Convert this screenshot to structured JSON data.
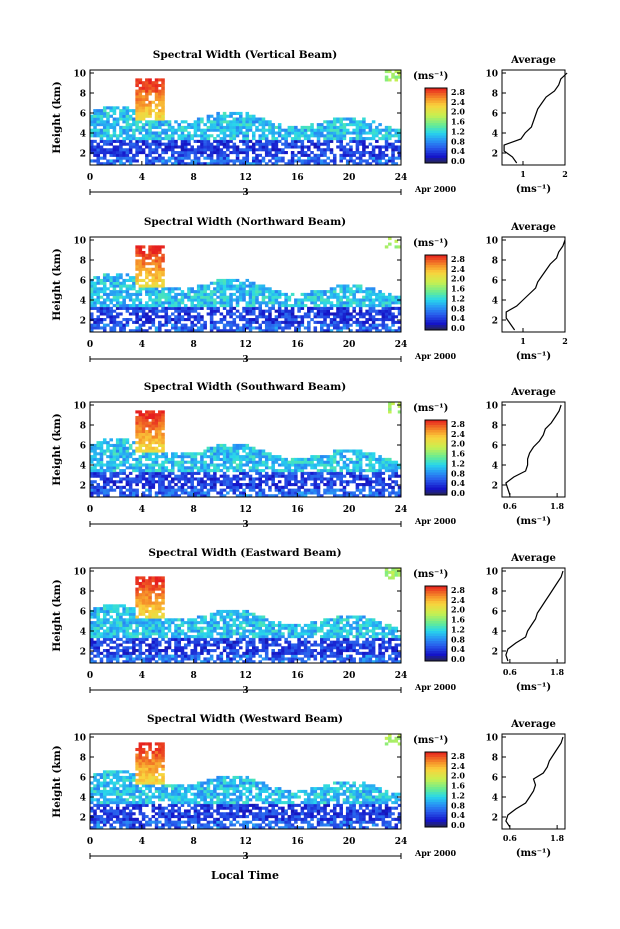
{
  "figure": {
    "x_axis_label": "Local Time",
    "date_label": "Apr 2000",
    "day_label": "3",
    "colorbar_unit": "(ms⁻¹)",
    "colorbar_ticks": [
      "2.8",
      "2.4",
      "2.0",
      "1.6",
      "1.2",
      "0.8",
      "0.4",
      "0.0"
    ],
    "average_title": "Average",
    "average_xlabel": "(ms⁻¹)"
  },
  "chart_data": [
    {
      "type": "heatmap",
      "title": "Spectral Width (Vertical Beam)",
      "ylabel": "Height (km)",
      "xlabel": "",
      "x_ticks": [
        0,
        4,
        8,
        12,
        16,
        20,
        24
      ],
      "y_ticks": [
        2,
        4,
        6,
        8,
        10
      ],
      "xlim": [
        0,
        24
      ],
      "ylim": [
        0.8,
        10.3
      ],
      "color_scale": {
        "min": 0.0,
        "max": 3.0,
        "unit": "ms^-1"
      },
      "average_profile": {
        "x_ticks": [
          1,
          2
        ],
        "xlim": [
          0.5,
          2.0
        ],
        "heights": [
          1.0,
          1.6,
          2.2,
          2.8,
          3.4,
          4.0,
          4.6,
          5.2,
          5.8,
          6.4,
          7.0,
          7.6,
          8.2,
          8.8,
          9.4,
          10.0
        ],
        "values": [
          0.85,
          0.75,
          0.55,
          0.55,
          0.95,
          1.05,
          1.2,
          1.25,
          1.3,
          1.35,
          1.45,
          1.55,
          1.75,
          1.85,
          1.9,
          2.05
        ]
      }
    },
    {
      "type": "heatmap",
      "title": "Spectral Width (Northward Beam)",
      "ylabel": "Height (km)",
      "xlabel": "",
      "x_ticks": [
        0,
        4,
        8,
        12,
        16,
        20,
        24
      ],
      "y_ticks": [
        2,
        4,
        6,
        8,
        10
      ],
      "xlim": [
        0,
        24
      ],
      "ylim": [
        0.8,
        10.3
      ],
      "color_scale": {
        "min": 0.0,
        "max": 3.0,
        "unit": "ms^-1"
      },
      "average_profile": {
        "x_ticks": [
          1,
          2
        ],
        "xlim": [
          0.5,
          2.0
        ],
        "heights": [
          1.0,
          1.6,
          2.2,
          2.8,
          3.4,
          4.0,
          4.6,
          5.2,
          5.8,
          6.4,
          7.0,
          7.6,
          8.2,
          8.8,
          9.4,
          10.0
        ],
        "values": [
          0.8,
          0.7,
          0.6,
          0.6,
          0.85,
          1.0,
          1.15,
          1.3,
          1.35,
          1.45,
          1.55,
          1.65,
          1.8,
          1.85,
          1.95,
          2.0
        ]
      }
    },
    {
      "type": "heatmap",
      "title": "Spectral Width (Southward Beam)",
      "ylabel": "Height (km)",
      "xlabel": "",
      "x_ticks": [
        0,
        4,
        8,
        12,
        16,
        20,
        24
      ],
      "y_ticks": [
        2,
        4,
        6,
        8,
        10
      ],
      "xlim": [
        0,
        24
      ],
      "ylim": [
        0.8,
        10.3
      ],
      "color_scale": {
        "min": 0.0,
        "max": 3.0,
        "unit": "ms^-1"
      },
      "average_profile": {
        "x_ticks": [
          0.6,
          1.8
        ],
        "xlim": [
          0.4,
          2.0
        ],
        "heights": [
          1.0,
          1.6,
          2.2,
          2.8,
          3.4,
          4.0,
          4.6,
          5.2,
          5.8,
          6.4,
          7.0,
          7.6,
          8.2,
          8.8,
          9.4,
          10.0
        ],
        "values": [
          0.6,
          0.55,
          0.5,
          0.7,
          1.0,
          1.05,
          1.05,
          1.1,
          1.2,
          1.35,
          1.45,
          1.5,
          1.65,
          1.75,
          1.85,
          1.9
        ]
      }
    },
    {
      "type": "heatmap",
      "title": "Spectral Width (Eastward Beam)",
      "ylabel": "Height (km)",
      "xlabel": "",
      "x_ticks": [
        0,
        4,
        8,
        12,
        16,
        20,
        24
      ],
      "y_ticks": [
        2,
        4,
        6,
        8,
        10
      ],
      "xlim": [
        0,
        24
      ],
      "ylim": [
        0.8,
        10.3
      ],
      "color_scale": {
        "min": 0.0,
        "max": 3.0,
        "unit": "ms^-1"
      },
      "average_profile": {
        "x_ticks": [
          0.6,
          1.8
        ],
        "xlim": [
          0.4,
          2.0
        ],
        "heights": [
          1.0,
          1.6,
          2.2,
          2.8,
          3.4,
          4.0,
          4.6,
          5.2,
          5.8,
          6.4,
          7.0,
          7.6,
          8.2,
          8.8,
          9.4,
          10.0
        ],
        "values": [
          0.55,
          0.5,
          0.55,
          0.75,
          1.0,
          1.05,
          1.15,
          1.25,
          1.3,
          1.4,
          1.5,
          1.6,
          1.7,
          1.8,
          1.9,
          1.95
        ]
      }
    },
    {
      "type": "heatmap",
      "title": "Spectral Width (Westward Beam)",
      "ylabel": "Height (km)",
      "xlabel": "Local Time",
      "x_ticks": [
        0,
        4,
        8,
        12,
        16,
        20,
        24
      ],
      "y_ticks": [
        2,
        4,
        6,
        8,
        10
      ],
      "xlim": [
        0,
        24
      ],
      "ylim": [
        0.8,
        10.3
      ],
      "color_scale": {
        "min": 0.0,
        "max": 3.0,
        "unit": "ms^-1"
      },
      "average_profile": {
        "x_ticks": [
          0.6,
          1.8
        ],
        "xlim": [
          0.4,
          2.0
        ],
        "heights": [
          1.0,
          1.6,
          2.2,
          2.8,
          3.4,
          4.0,
          4.6,
          5.2,
          5.8,
          6.4,
          7.0,
          7.6,
          8.2,
          8.8,
          9.4,
          10.0
        ],
        "values": [
          0.6,
          0.5,
          0.55,
          0.75,
          1.0,
          1.1,
          1.2,
          1.25,
          1.2,
          1.45,
          1.55,
          1.6,
          1.7,
          1.8,
          1.9,
          1.95
        ]
      }
    }
  ]
}
